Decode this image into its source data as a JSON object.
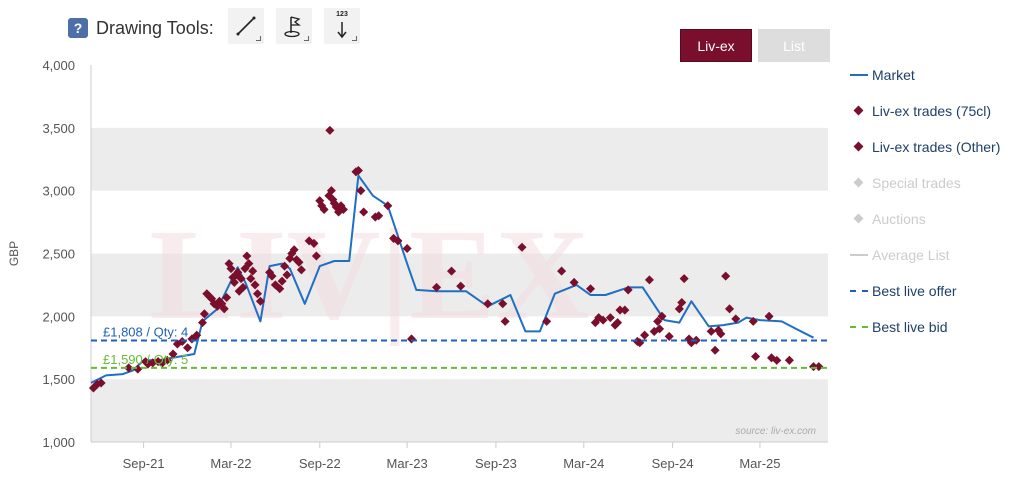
{
  "toolbar": {
    "help_label": "?",
    "title": "Drawing Tools:",
    "tools": [
      {
        "icon": "line-draw-icon",
        "label": ""
      },
      {
        "icon": "flag-marker-icon",
        "label": ""
      },
      {
        "icon": "numbered-marker-icon",
        "label": "123"
      }
    ]
  },
  "toggle": {
    "livex_label": "Liv-ex",
    "list_label": "List",
    "selected": "Liv-ex"
  },
  "watermark": "LIV|EX",
  "source": "source: liv-ex.com",
  "colors": {
    "market": "#1f6fc4",
    "trades": "#7a0f2d",
    "offer": "#1f5fbf",
    "bid": "#66bb33",
    "inactive": "#cccccc",
    "band": "#ececec"
  },
  "legend": [
    {
      "label": "Market",
      "symbol": "line",
      "color": "#1f6fc4",
      "active": true
    },
    {
      "label": "Liv-ex trades (75cl)",
      "symbol": "diamond",
      "color": "#7a0f2d",
      "active": true
    },
    {
      "label": "Liv-ex trades (Other)",
      "symbol": "diamond",
      "color": "#7a0f2d",
      "active": true
    },
    {
      "label": "Special trades",
      "symbol": "diamond",
      "color": "#cccccc",
      "active": false
    },
    {
      "label": "Auctions",
      "symbol": "diamond",
      "color": "#cccccc",
      "active": false
    },
    {
      "label": "Average List",
      "symbol": "line",
      "color": "#cccccc",
      "active": false
    },
    {
      "label": "Best live offer",
      "symbol": "dash",
      "color": "#1f5fbf",
      "active": true
    },
    {
      "label": "Best live bid",
      "symbol": "dash",
      "color": "#66bb33",
      "active": true
    }
  ],
  "chart_data": {
    "type": "line",
    "ylabel": "GBP",
    "xlabel": "",
    "ylim": [
      1000,
      4000
    ],
    "yticks": [
      1000,
      1500,
      2000,
      2500,
      3000,
      3500,
      4000
    ],
    "ytick_labels": [
      "1,000",
      "1,500",
      "2,000",
      "2,500",
      "3,000",
      "3,500",
      "4,000"
    ],
    "xlim": [
      "2021-05-15",
      "2025-07-20"
    ],
    "xticks": [
      "2021-09-01",
      "2022-03-01",
      "2022-09-01",
      "2023-03-01",
      "2023-09-01",
      "2024-03-01",
      "2024-09-01",
      "2025-03-01"
    ],
    "xtick_labels": [
      "Sep-21",
      "Mar-22",
      "Sep-22",
      "Mar-23",
      "Sep-23",
      "Mar-24",
      "Sep-24",
      "Mar-25"
    ],
    "grid": "alternating horizontal bands",
    "legend_position": "right",
    "series": [
      {
        "name": "Market",
        "type": "line",
        "color": "#1f6fc4",
        "points": [
          [
            "2021-05-15",
            1470
          ],
          [
            "2021-06-15",
            1530
          ],
          [
            "2021-07-20",
            1540
          ],
          [
            "2021-08-10",
            1570
          ],
          [
            "2021-09-01",
            1650
          ],
          [
            "2021-10-01",
            1650
          ],
          [
            "2021-11-15",
            1680
          ],
          [
            "2021-12-15",
            1700
          ],
          [
            "2022-01-01",
            1960
          ],
          [
            "2022-02-01",
            2060
          ],
          [
            "2022-03-15",
            2390
          ],
          [
            "2022-04-01",
            2260
          ],
          [
            "2022-05-01",
            1960
          ],
          [
            "2022-05-20",
            2400
          ],
          [
            "2022-06-15",
            2420
          ],
          [
            "2022-07-01",
            2380
          ],
          [
            "2022-08-01",
            2100
          ],
          [
            "2022-09-01",
            2400
          ],
          [
            "2022-10-01",
            2440
          ],
          [
            "2022-11-01",
            2440
          ],
          [
            "2022-11-20",
            3120
          ],
          [
            "2022-12-20",
            2960
          ],
          [
            "2023-01-20",
            2880
          ],
          [
            "2023-03-01",
            2420
          ],
          [
            "2023-03-20",
            2210
          ],
          [
            "2023-05-01",
            2200
          ],
          [
            "2023-07-01",
            2200
          ],
          [
            "2023-08-15",
            2080
          ],
          [
            "2023-10-01",
            2170
          ],
          [
            "2023-11-01",
            1880
          ],
          [
            "2023-12-01",
            1880
          ],
          [
            "2024-01-01",
            2180
          ],
          [
            "2024-02-15",
            2250
          ],
          [
            "2024-03-15",
            2170
          ],
          [
            "2024-04-15",
            2170
          ],
          [
            "2024-06-01",
            2230
          ],
          [
            "2024-07-01",
            2230
          ],
          [
            "2024-08-15",
            1970
          ],
          [
            "2024-09-15",
            1950
          ],
          [
            "2024-10-10",
            2120
          ],
          [
            "2024-11-15",
            1920
          ],
          [
            "2024-12-15",
            1930
          ],
          [
            "2025-01-15",
            1950
          ],
          [
            "2025-02-01",
            1990
          ],
          [
            "2025-03-01",
            1970
          ],
          [
            "2025-04-15",
            1960
          ],
          [
            "2025-05-15",
            1900
          ],
          [
            "2025-06-20",
            1830
          ]
        ]
      },
      {
        "name": "Liv-ex trades (75cl)",
        "type": "scatter",
        "color": "#7a0f2d",
        "points": [
          [
            "2021-05-20",
            1430
          ],
          [
            "2021-05-28",
            1460
          ],
          [
            "2021-06-05",
            1470
          ],
          [
            "2021-08-01",
            1590
          ],
          [
            "2021-08-20",
            1580
          ],
          [
            "2021-09-05",
            1640
          ],
          [
            "2021-09-10",
            1620
          ],
          [
            "2021-09-20",
            1630
          ],
          [
            "2021-10-01",
            1640
          ],
          [
            "2021-10-10",
            1630
          ],
          [
            "2021-10-20",
            1650
          ],
          [
            "2021-11-01",
            1700
          ],
          [
            "2021-11-10",
            1780
          ],
          [
            "2021-11-20",
            1800
          ],
          [
            "2021-12-01",
            1750
          ],
          [
            "2021-12-10",
            1820
          ],
          [
            "2021-12-20",
            1850
          ],
          [
            "2022-01-01",
            1950
          ],
          [
            "2022-01-05",
            2020
          ],
          [
            "2022-01-10",
            2180
          ],
          [
            "2022-01-15",
            2160
          ],
          [
            "2022-01-20",
            2140
          ],
          [
            "2022-01-25",
            2100
          ],
          [
            "2022-02-01",
            2080
          ],
          [
            "2022-02-05",
            2120
          ],
          [
            "2022-02-10",
            2100
          ],
          [
            "2022-02-15",
            2060
          ],
          [
            "2022-02-20",
            2150
          ],
          [
            "2022-02-25",
            2420
          ],
          [
            "2022-03-01",
            2380
          ],
          [
            "2022-03-05",
            2310
          ],
          [
            "2022-03-08",
            2270
          ],
          [
            "2022-03-12",
            2330
          ],
          [
            "2022-03-15",
            2350
          ],
          [
            "2022-03-18",
            2200
          ],
          [
            "2022-03-22",
            2300
          ],
          [
            "2022-03-26",
            2230
          ],
          [
            "2022-03-30",
            2380
          ],
          [
            "2022-04-03",
            2480
          ],
          [
            "2022-04-07",
            2420
          ],
          [
            "2022-04-11",
            2300
          ],
          [
            "2022-04-15",
            2360
          ],
          [
            "2022-04-20",
            2250
          ],
          [
            "2022-04-25",
            2180
          ],
          [
            "2022-05-01",
            2120
          ],
          [
            "2022-05-20",
            2350
          ],
          [
            "2022-05-25",
            2320
          ],
          [
            "2022-06-01",
            2250
          ],
          [
            "2022-06-10",
            2220
          ],
          [
            "2022-06-15",
            2280
          ],
          [
            "2022-06-20",
            2400
          ],
          [
            "2022-06-25",
            2330
          ],
          [
            "2022-07-01",
            2460
          ],
          [
            "2022-07-05",
            2500
          ],
          [
            "2022-07-10",
            2530
          ],
          [
            "2022-07-15",
            2450
          ],
          [
            "2022-07-20",
            2430
          ],
          [
            "2022-07-25",
            2370
          ],
          [
            "2022-08-10",
            2600
          ],
          [
            "2022-08-20",
            2580
          ],
          [
            "2022-08-25",
            2480
          ],
          [
            "2022-09-01",
            2920
          ],
          [
            "2022-09-05",
            2880
          ],
          [
            "2022-09-10",
            2850
          ],
          [
            "2022-09-20",
            2960
          ],
          [
            "2022-09-25",
            3000
          ],
          [
            "2022-09-28",
            2930
          ],
          [
            "2022-10-01",
            2900
          ],
          [
            "2022-10-05",
            2870
          ],
          [
            "2022-10-10",
            2830
          ],
          [
            "2022-10-15",
            2880
          ],
          [
            "2022-10-20",
            2850
          ],
          [
            "2022-09-22",
            3480
          ],
          [
            "2022-11-15",
            3150
          ],
          [
            "2022-11-20",
            3160
          ],
          [
            "2022-11-25",
            3000
          ],
          [
            "2022-12-01",
            2830
          ],
          [
            "2022-12-25",
            2790
          ],
          [
            "2023-01-01",
            2800
          ],
          [
            "2023-01-20",
            2880
          ],
          [
            "2023-02-01",
            2620
          ],
          [
            "2023-02-10",
            2600
          ],
          [
            "2023-03-01",
            2540
          ],
          [
            "2023-03-10",
            1820
          ],
          [
            "2023-05-01",
            2230
          ],
          [
            "2023-06-01",
            2360
          ],
          [
            "2023-06-20",
            2240
          ],
          [
            "2023-08-15",
            2100
          ],
          [
            "2023-09-15",
            2100
          ],
          [
            "2023-09-20",
            1960
          ],
          [
            "2023-10-25",
            2550
          ],
          [
            "2023-12-15",
            1960
          ],
          [
            "2024-01-15",
            2360
          ],
          [
            "2024-02-10",
            2270
          ],
          [
            "2024-03-15",
            2220
          ],
          [
            "2024-03-25",
            1950
          ],
          [
            "2024-04-01",
            1990
          ],
          [
            "2024-04-10",
            1970
          ],
          [
            "2024-04-25",
            1990
          ],
          [
            "2024-05-05",
            1930
          ],
          [
            "2024-05-10",
            1950
          ],
          [
            "2024-05-15",
            2050
          ],
          [
            "2024-05-25",
            2050
          ],
          [
            "2024-06-01",
            2210
          ],
          [
            "2024-06-20",
            1800
          ],
          [
            "2024-06-25",
            1790
          ],
          [
            "2024-07-05",
            1850
          ],
          [
            "2024-07-15",
            2290
          ],
          [
            "2024-07-25",
            1880
          ],
          [
            "2024-08-01",
            1960
          ],
          [
            "2024-08-05",
            1900
          ],
          [
            "2024-08-10",
            2000
          ],
          [
            "2024-08-25",
            1840
          ],
          [
            "2024-09-15",
            2060
          ],
          [
            "2024-09-20",
            2110
          ],
          [
            "2024-09-25",
            2300
          ],
          [
            "2024-10-05",
            1820
          ],
          [
            "2024-10-10",
            1790
          ],
          [
            "2024-10-20",
            1810
          ],
          [
            "2024-11-20",
            1880
          ],
          [
            "2024-11-28",
            1730
          ],
          [
            "2024-12-05",
            1890
          ],
          [
            "2024-12-10",
            1860
          ],
          [
            "2024-12-20",
            2320
          ],
          [
            "2024-12-28",
            2060
          ],
          [
            "2025-01-10",
            1980
          ],
          [
            "2025-02-15",
            1960
          ],
          [
            "2025-02-20",
            1680
          ],
          [
            "2025-03-20",
            2000
          ],
          [
            "2025-03-25",
            1670
          ],
          [
            "2025-04-05",
            1650
          ],
          [
            "2025-05-01",
            1650
          ],
          [
            "2025-06-20",
            1600
          ],
          [
            "2025-07-01",
            1600
          ]
        ]
      },
      {
        "name": "Best live offer",
        "type": "hline",
        "color": "#1f5fbf",
        "value": 1808,
        "label": "£1,808 / Qty: 4"
      },
      {
        "name": "Best live bid",
        "type": "hline",
        "color": "#66bb33",
        "value": 1590,
        "label": "£1,590 / Qty: 5"
      }
    ]
  }
}
